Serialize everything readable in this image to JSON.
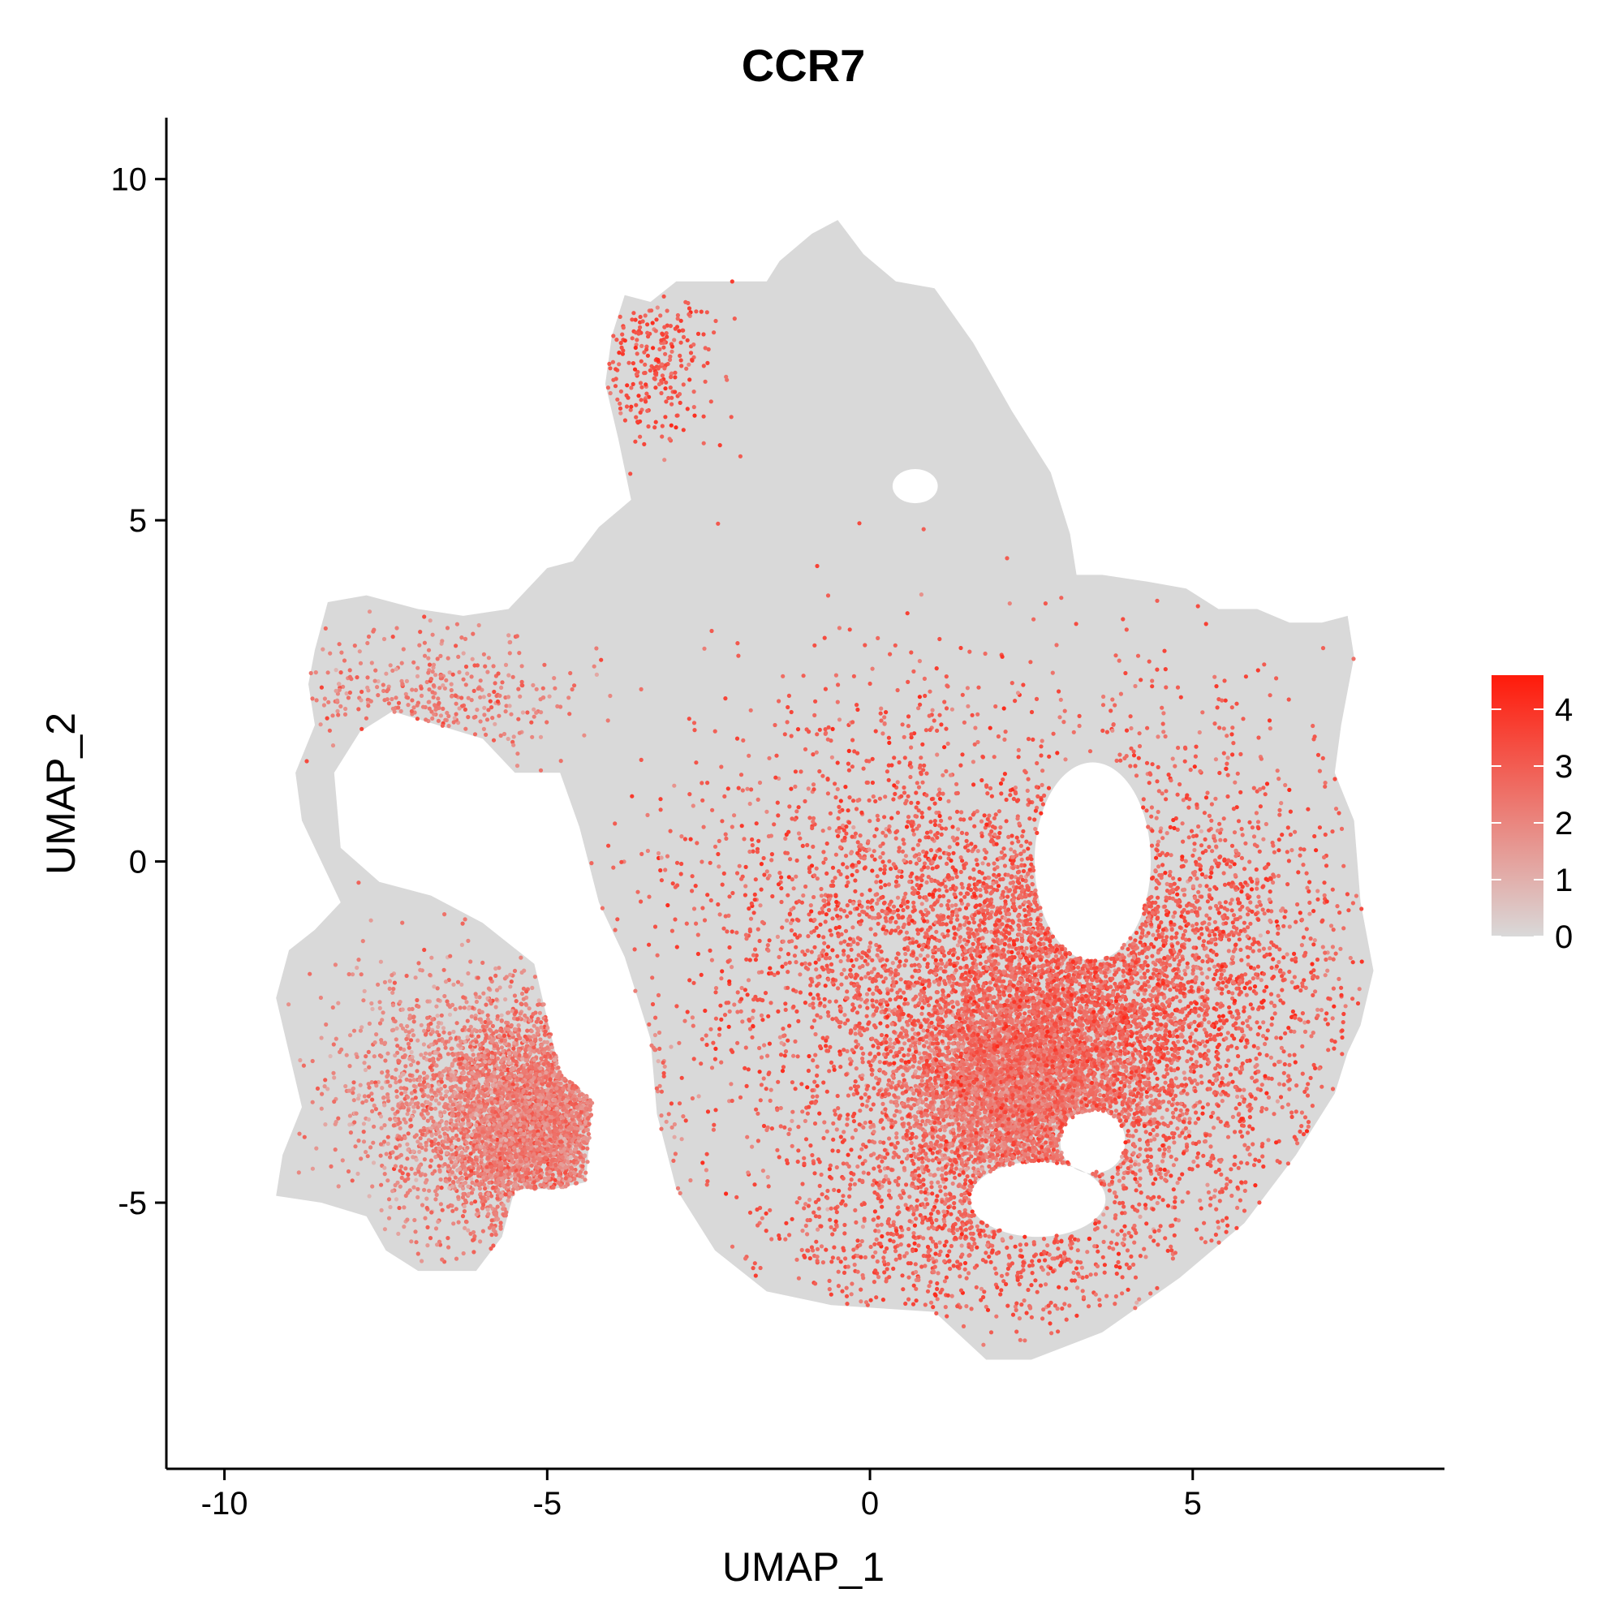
{
  "chart_data": {
    "type": "scatter",
    "title": "CCR7",
    "xlabel": "UMAP_1",
    "ylabel": "UMAP_2",
    "xlim": [
      -10.9,
      8.9
    ],
    "ylim": [
      -8.9,
      10.9
    ],
    "x_ticks": [
      {
        "value": -10,
        "label": "-10"
      },
      {
        "value": -5,
        "label": "-5"
      },
      {
        "value": 0,
        "label": "0"
      },
      {
        "value": 5,
        "label": "5"
      }
    ],
    "y_ticks": [
      {
        "value": -5,
        "label": "-5"
      },
      {
        "value": 0,
        "label": "0"
      },
      {
        "value": 5,
        "label": "5"
      },
      {
        "value": 10,
        "label": "10"
      }
    ],
    "grid": false,
    "color_scale": {
      "low_color": "#d9d9d9",
      "high_color": "#ff1a0a",
      "min": 0,
      "max": 4.6,
      "ticks": [
        {
          "value": 0,
          "label": "0"
        },
        {
          "value": 1,
          "label": "1"
        },
        {
          "value": 2,
          "label": "2"
        },
        {
          "value": 3,
          "label": "3"
        },
        {
          "value": 4,
          "label": "4"
        }
      ],
      "legend_position": "right"
    },
    "background_color": "#d9d9d9",
    "outline": [
      [
        -9.2,
        -2.0
      ],
      [
        -9.0,
        -1.3
      ],
      [
        -8.6,
        -1.0
      ],
      [
        -8.2,
        -0.6
      ],
      [
        -8.5,
        0.0
      ],
      [
        -8.8,
        0.6
      ],
      [
        -8.9,
        1.3
      ],
      [
        -8.6,
        2.0
      ],
      [
        -8.7,
        2.6
      ],
      [
        -8.6,
        3.1
      ],
      [
        -8.4,
        3.8
      ],
      [
        -7.8,
        3.9
      ],
      [
        -7.0,
        3.7
      ],
      [
        -6.3,
        3.6
      ],
      [
        -5.6,
        3.7
      ],
      [
        -5.0,
        4.3
      ],
      [
        -4.6,
        4.4
      ],
      [
        -4.2,
        4.9
      ],
      [
        -3.7,
        5.3
      ],
      [
        -3.9,
        6.2
      ],
      [
        -4.1,
        7.0
      ],
      [
        -4.0,
        7.7
      ],
      [
        -3.8,
        8.3
      ],
      [
        -3.4,
        8.2
      ],
      [
        -3.0,
        8.5
      ],
      [
        -2.4,
        8.5
      ],
      [
        -1.6,
        8.5
      ],
      [
        -1.4,
        8.8
      ],
      [
        -0.9,
        9.2
      ],
      [
        -0.5,
        9.4
      ],
      [
        -0.1,
        8.9
      ],
      [
        0.4,
        8.5
      ],
      [
        1.0,
        8.4
      ],
      [
        1.6,
        7.6
      ],
      [
        2.2,
        6.6
      ],
      [
        2.8,
        5.7
      ],
      [
        3.1,
        4.8
      ],
      [
        3.2,
        4.2
      ],
      [
        3.6,
        4.2
      ],
      [
        4.3,
        4.1
      ],
      [
        4.9,
        4.0
      ],
      [
        5.4,
        3.7
      ],
      [
        6.0,
        3.7
      ],
      [
        6.5,
        3.5
      ],
      [
        7.0,
        3.5
      ],
      [
        7.4,
        3.6
      ],
      [
        7.5,
        3.0
      ],
      [
        7.3,
        2.0
      ],
      [
        7.2,
        1.3
      ],
      [
        7.5,
        0.6
      ],
      [
        7.6,
        -0.6
      ],
      [
        7.8,
        -1.6
      ],
      [
        7.6,
        -2.4
      ],
      [
        7.4,
        -2.8
      ],
      [
        7.2,
        -3.4
      ],
      [
        6.6,
        -4.3
      ],
      [
        5.8,
        -5.3
      ],
      [
        4.8,
        -6.1
      ],
      [
        3.6,
        -6.9
      ],
      [
        2.5,
        -7.3
      ],
      [
        1.8,
        -7.3
      ],
      [
        1.0,
        -6.6
      ],
      [
        -0.6,
        -6.5
      ],
      [
        -1.6,
        -6.3
      ],
      [
        -2.4,
        -5.7
      ],
      [
        -3.0,
        -4.8
      ],
      [
        -3.3,
        -3.7
      ],
      [
        -3.4,
        -2.6
      ],
      [
        -3.8,
        -1.4
      ],
      [
        -4.2,
        -0.6
      ],
      [
        -4.5,
        0.5
      ],
      [
        -4.8,
        1.3
      ],
      [
        -5.5,
        1.3
      ],
      [
        -6.0,
        1.8
      ],
      [
        -6.7,
        2.0
      ],
      [
        -7.4,
        2.2
      ],
      [
        -7.9,
        1.9
      ],
      [
        -8.3,
        1.3
      ],
      [
        -8.2,
        0.2
      ],
      [
        -7.6,
        -0.3
      ],
      [
        -6.8,
        -0.5
      ],
      [
        -6.0,
        -0.9
      ],
      [
        -5.2,
        -1.5
      ],
      [
        -4.8,
        -3.1
      ],
      [
        -4.3,
        -3.5
      ],
      [
        -4.4,
        -4.7
      ],
      [
        -4.9,
        -4.8
      ],
      [
        -5.5,
        -4.8
      ],
      [
        -5.7,
        -5.5
      ],
      [
        -6.1,
        -6.0
      ],
      [
        -7.0,
        -6.0
      ],
      [
        -7.5,
        -5.7
      ],
      [
        -7.8,
        -5.2
      ],
      [
        -8.5,
        -5.0
      ],
      [
        -9.2,
        -4.9
      ],
      [
        -9.1,
        -4.3
      ],
      [
        -8.8,
        -3.6
      ],
      [
        -9.0,
        -2.8
      ]
    ],
    "holes": [
      {
        "type": "ellipse",
        "cx": 3.45,
        "cy": 0.0,
        "rx": 0.9,
        "ry": 1.45
      },
      {
        "type": "ellipse",
        "cx": 2.6,
        "cy": -4.95,
        "rx": 1.05,
        "ry": 0.55
      },
      {
        "type": "ellipse",
        "cx": 3.45,
        "cy": -4.1,
        "rx": 0.5,
        "ry": 0.45
      },
      {
        "type": "ellipse",
        "cx": 0.7,
        "cy": 5.5,
        "rx": 0.35,
        "ry": 0.25
      }
    ],
    "hotspots": [
      {
        "label": "lower-left cluster",
        "x": -5.1,
        "y": -3.8,
        "sx": 0.75,
        "sy": 0.75,
        "weight": 3200,
        "level": 2.2
      },
      {
        "label": "lower-left spread",
        "x": -6.5,
        "y": -3.5,
        "sx": 0.9,
        "sy": 1.0,
        "weight": 1200,
        "level": 2.0
      },
      {
        "label": "right cluster",
        "x": 2.3,
        "y": -3.4,
        "sx": 0.95,
        "sy": 0.75,
        "weight": 4200,
        "level": 2.3
      },
      {
        "label": "right cluster extension",
        "x": 3.0,
        "y": -1.8,
        "sx": 1.2,
        "sy": 1.1,
        "weight": 2600,
        "level": 2.8
      },
      {
        "label": "centre band",
        "x": 0.8,
        "y": -1.2,
        "sx": 1.9,
        "sy": 1.8,
        "weight": 2600,
        "level": 3.0
      },
      {
        "label": "right side",
        "x": 5.2,
        "y": -2.0,
        "sx": 1.2,
        "sy": 2.0,
        "weight": 1600,
        "level": 3.0
      },
      {
        "label": "bottom band",
        "x": 1.5,
        "y": -5.5,
        "sx": 1.5,
        "sy": 0.7,
        "weight": 800,
        "level": 3.0
      },
      {
        "label": "top-left island",
        "x": -3.4,
        "y": 7.3,
        "sx": 0.5,
        "sy": 0.6,
        "weight": 250,
        "level": 3.2
      },
      {
        "label": "left upper band",
        "x": -6.8,
        "y": 2.4,
        "sx": 1.1,
        "sy": 0.5,
        "weight": 350,
        "level": 2.3
      }
    ]
  }
}
